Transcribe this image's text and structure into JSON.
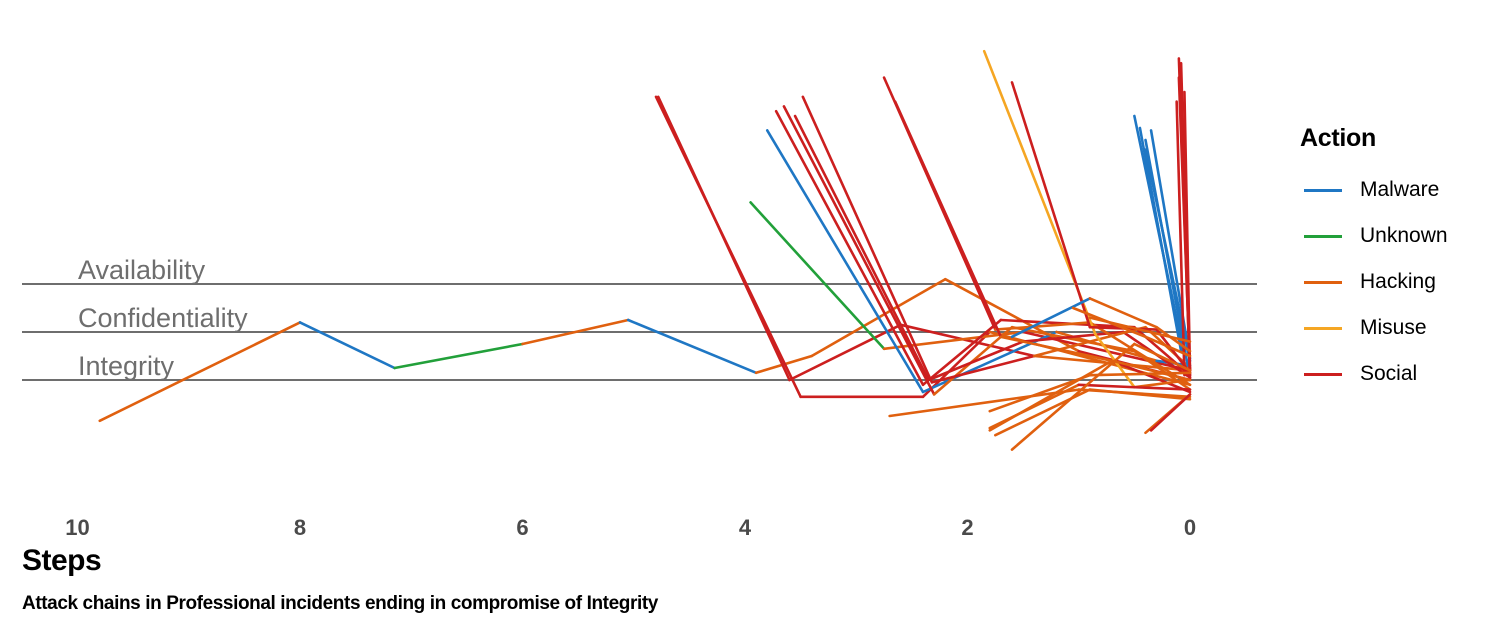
{
  "chart_data": {
    "type": "line",
    "xlabel": "Steps",
    "caption": "Attack chains in Professional incidents ending in compromise of Integrity",
    "xlim": [
      10.5,
      -0.5
    ],
    "x_ticks": [
      10,
      8,
      6,
      4,
      2,
      0
    ],
    "bands": [
      "Availability",
      "Confidentiality",
      "Integrity"
    ],
    "legend_title": "Action",
    "legend": [
      {
        "name": "Malware",
        "color": "#1f77c4"
      },
      {
        "name": "Unknown",
        "color": "#22a03a"
      },
      {
        "name": "Hacking",
        "color": "#e0600f"
      },
      {
        "name": "Misuse",
        "color": "#f5a623"
      },
      {
        "name": "Social",
        "color": "#cc1f1f"
      }
    ],
    "chains": [
      [
        [
          9.8,
          "Hacking",
          -0.85
        ],
        [
          8.0,
          "Hacking",
          1.2
        ],
        [
          7.15,
          "Malware",
          0.25
        ],
        [
          6.0,
          "Unknown",
          0.75
        ],
        [
          5.05,
          "Hacking",
          1.25
        ],
        [
          3.9,
          "Malware",
          0.15
        ],
        [
          3.4,
          "Hacking",
          0.5
        ],
        [
          2.2,
          "Hacking",
          2.1
        ],
        [
          1.0,
          "Hacking",
          0.6
        ],
        [
          0.0,
          "Social",
          0.0
        ]
      ],
      [
        [
          4.8,
          "Social",
          5.9
        ],
        [
          3.5,
          "Social",
          -0.35
        ],
        [
          2.4,
          "Social",
          -0.35
        ],
        [
          1.8,
          "Social",
          1.0
        ],
        [
          0.0,
          "Hacking",
          -0.1
        ]
      ],
      [
        [
          4.78,
          "Social",
          5.9
        ],
        [
          3.6,
          "Social",
          0.0
        ],
        [
          2.6,
          "Social",
          1.15
        ],
        [
          1.4,
          "Social",
          0.5
        ],
        [
          0.0,
          "Hacking",
          0.2
        ]
      ],
      [
        [
          3.95,
          "Unknown",
          3.7
        ],
        [
          2.75,
          "Unknown",
          0.65
        ],
        [
          1.5,
          "Hacking",
          1.0
        ],
        [
          0.0,
          "Social",
          0.2
        ]
      ],
      [
        [
          3.8,
          "Malware",
          5.2
        ],
        [
          2.4,
          "Malware",
          -0.25
        ],
        [
          1.2,
          "Malware",
          1.0
        ],
        [
          0.3,
          "Hacking",
          0.4
        ],
        [
          0.0,
          "Malware",
          0.3
        ]
      ],
      [
        [
          3.72,
          "Social",
          5.6
        ],
        [
          2.4,
          "Social",
          -0.1
        ],
        [
          1.7,
          "Social",
          1.25
        ],
        [
          0.5,
          "Social",
          1.1
        ],
        [
          0.0,
          "Social",
          0.1
        ]
      ],
      [
        [
          3.65,
          "Social",
          5.7
        ],
        [
          2.3,
          "Social",
          -0.3
        ],
        [
          1.6,
          "Hacking",
          1.1
        ],
        [
          0.5,
          "Hacking",
          0.6
        ],
        [
          0.0,
          "Hacking",
          -0.2
        ]
      ],
      [
        [
          3.55,
          "Social",
          5.5
        ],
        [
          2.35,
          "Social",
          0.0
        ],
        [
          1.5,
          "Social",
          0.8
        ],
        [
          0.6,
          "Social",
          1.0
        ],
        [
          0.0,
          "Social",
          0.05
        ]
      ],
      [
        [
          3.48,
          "Social",
          5.9
        ],
        [
          2.32,
          "Social",
          -0.05
        ],
        [
          1.4,
          "Social",
          0.5
        ],
        [
          0.4,
          "Hacking",
          1.1
        ],
        [
          0.0,
          "Hacking",
          0.25
        ]
      ],
      [
        [
          2.75,
          "Social",
          6.3
        ],
        [
          1.75,
          "Social",
          1.05
        ],
        [
          0.9,
          "Hacking",
          1.2
        ],
        [
          0.0,
          "Hacking",
          -0.1
        ]
      ],
      [
        [
          2.65,
          "Social",
          5.8
        ],
        [
          1.7,
          "Social",
          0.9
        ],
        [
          0.7,
          "Hacking",
          0.4
        ],
        [
          0.0,
          "Social",
          -0.25
        ]
      ],
      [
        [
          1.85,
          "Misuse",
          6.85
        ],
        [
          0.85,
          "Misuse",
          0.95
        ],
        [
          0.5,
          "Misuse",
          -0.15
        ],
        [
          0.0,
          "Hacking",
          0.0
        ]
      ],
      [
        [
          1.6,
          "Social",
          6.2
        ],
        [
          0.9,
          "Social",
          1.1
        ],
        [
          0.3,
          "Social",
          1.05
        ],
        [
          0.0,
          "Social",
          0.15
        ]
      ],
      [
        [
          0.5,
          "Malware",
          5.5
        ],
        [
          0.05,
          "Malware",
          0.5
        ]
      ],
      [
        [
          0.45,
          "Malware",
          5.25
        ],
        [
          0.08,
          "Malware",
          0.6
        ]
      ],
      [
        [
          0.4,
          "Malware",
          4.8
        ],
        [
          0.0,
          "Malware",
          0.4
        ]
      ],
      [
        [
          0.4,
          "Malware",
          5.0
        ],
        [
          0.02,
          "Malware",
          0.3
        ]
      ],
      [
        [
          0.35,
          "Malware",
          5.2
        ],
        [
          0.0,
          "Malware",
          0.45
        ]
      ],
      [
        [
          0.1,
          "Social",
          6.7
        ],
        [
          0.0,
          "Social",
          0.1
        ]
      ],
      [
        [
          0.08,
          "Social",
          6.6
        ],
        [
          0.0,
          "Social",
          0.0
        ]
      ],
      [
        [
          0.05,
          "Social",
          6.0
        ],
        [
          0.0,
          "Social",
          0.2
        ]
      ],
      [
        [
          0.1,
          "Social",
          6.3
        ],
        [
          0.0,
          "Social",
          0.2
        ]
      ],
      [
        [
          0.12,
          "Social",
          5.8
        ],
        [
          0.05,
          "Social",
          0.1
        ]
      ],
      [
        [
          2.7,
          "Hacking",
          -0.75
        ],
        [
          1.0,
          "Hacking",
          -0.2
        ],
        [
          0.0,
          "Hacking",
          -0.35
        ]
      ],
      [
        [
          1.8,
          "Hacking",
          -0.65
        ],
        [
          0.9,
          "Hacking",
          0.1
        ],
        [
          0.0,
          "Hacking",
          0.15
        ]
      ],
      [
        [
          1.8,
          "Hacking",
          -1.0
        ],
        [
          1.0,
          "Hacking",
          -0.1
        ],
        [
          0.0,
          "Social",
          -0.2
        ]
      ],
      [
        [
          1.8,
          "Hacking",
          -1.05
        ],
        [
          0.7,
          "Hacking",
          0.4
        ],
        [
          0.0,
          "Hacking",
          0.0
        ]
      ],
      [
        [
          1.75,
          "Hacking",
          -1.15
        ],
        [
          0.9,
          "Hacking",
          -0.2
        ],
        [
          0.0,
          "Hacking",
          -0.4
        ]
      ],
      [
        [
          1.6,
          "Hacking",
          -1.45
        ],
        [
          0.5,
          "Hacking",
          0.75
        ],
        [
          0.0,
          "Hacking",
          0.2
        ]
      ],
      [
        [
          0.4,
          "Hacking",
          -1.1
        ],
        [
          0.0,
          "Hacking",
          -0.3
        ]
      ],
      [
        [
          0.35,
          "Hacking",
          -1.05
        ],
        [
          0.0,
          "Social",
          -0.3
        ]
      ],
      [
        [
          1.6,
          "Hacking",
          0.9
        ],
        [
          0.9,
          "Malware",
          1.7
        ],
        [
          0.3,
          "Hacking",
          1.1
        ],
        [
          0.0,
          "Hacking",
          0.6
        ]
      ],
      [
        [
          1.05,
          "Malware",
          1.5
        ],
        [
          0.4,
          "Hacking",
          0.9
        ],
        [
          0.0,
          "Hacking",
          0.5
        ]
      ],
      [
        [
          0.9,
          "Hacking",
          1.3
        ],
        [
          0.0,
          "Hacking",
          0.8
        ]
      ]
    ]
  }
}
